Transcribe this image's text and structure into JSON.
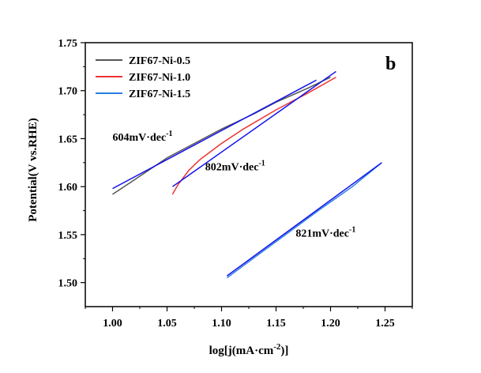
{
  "chart_data": {
    "type": "line",
    "panel_label": "b",
    "xlabel": "log[j(mA·cm",
    "xlabel_sup": "-2",
    "xlabel_end": ")]",
    "ylabel": "Potential(V vs.RHE)",
    "xlim": [
      0.975,
      1.275
    ],
    "ylim": [
      1.475,
      1.75
    ],
    "xticks": [
      1.0,
      1.05,
      1.1,
      1.15,
      1.2,
      1.25
    ],
    "xtick_labels": [
      "1.00",
      "1.05",
      "1.10",
      "1.15",
      "1.20",
      "1.25"
    ],
    "yticks": [
      1.5,
      1.55,
      1.6,
      1.65,
      1.7,
      1.75
    ],
    "ytick_labels": [
      "1.50",
      "1.55",
      "1.60",
      "1.65",
      "1.70",
      "1.75"
    ],
    "legend_position": "top-left",
    "series": [
      {
        "name": "ZIF67-Ni-0.5",
        "color": "#555555",
        "x": [
          1.0,
          1.02,
          1.05,
          1.08,
          1.1,
          1.13,
          1.15,
          1.18,
          1.2
        ],
        "y": [
          1.592,
          1.607,
          1.63,
          1.648,
          1.66,
          1.676,
          1.688,
          1.703,
          1.714
        ]
      },
      {
        "name": "ZIF67-Ni-1.0",
        "color": "#ee3333",
        "x": [
          1.055,
          1.06,
          1.07,
          1.08,
          1.1,
          1.12,
          1.15,
          1.18,
          1.205
        ],
        "y": [
          1.592,
          1.602,
          1.617,
          1.628,
          1.645,
          1.66,
          1.68,
          1.698,
          1.714
        ]
      },
      {
        "name": "ZIF67-Ni-1.5",
        "color": "#2a7de1",
        "x": [
          1.105,
          1.13,
          1.16,
          1.19,
          1.22,
          1.247
        ],
        "y": [
          1.505,
          1.526,
          1.551,
          1.576,
          1.6,
          1.625
        ]
      }
    ],
    "fit_lines": [
      {
        "color": "#1010ee",
        "x": [
          1.0,
          1.187
        ],
        "y": [
          1.598,
          1.711
        ]
      },
      {
        "color": "#1010ee",
        "x": [
          1.055,
          1.205
        ],
        "y": [
          1.6,
          1.72
        ]
      },
      {
        "color": "#1010ee",
        "x": [
          1.105,
          1.247
        ],
        "y": [
          1.507,
          1.625
        ]
      }
    ],
    "annotations": [
      {
        "text": "604mV·dec",
        "sup": "-1",
        "x": 1.0,
        "y": 1.648
      },
      {
        "text": "802mV·dec",
        "sup": "-1",
        "x": 1.085,
        "y": 1.617
      },
      {
        "text": "821mV·dec",
        "sup": "-1",
        "x": 1.168,
        "y": 1.548
      }
    ]
  }
}
